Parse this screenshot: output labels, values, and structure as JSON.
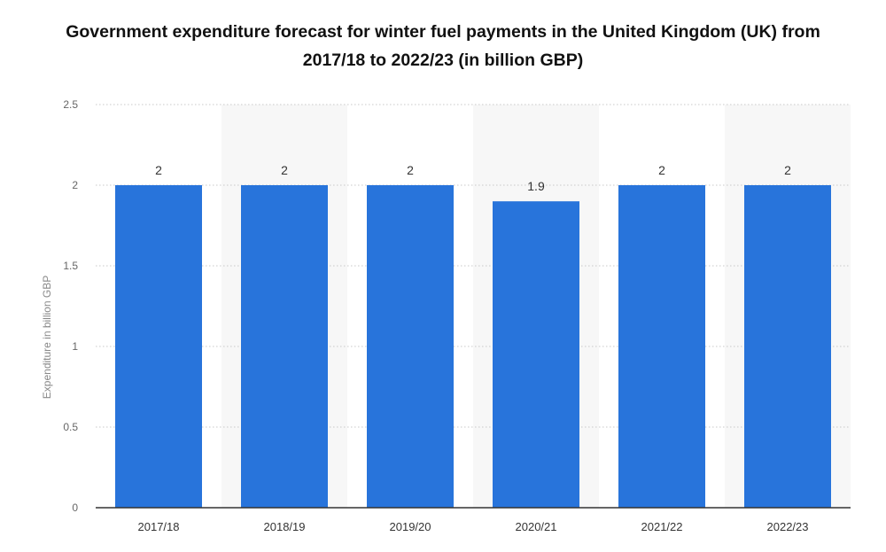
{
  "chart_data": {
    "type": "bar",
    "title": "Government expenditure forecast for winter fuel payments in the United Kingdom (UK) from 2017/18 to 2022/23 (in billion GBP)",
    "xlabel": "",
    "ylabel": "Expenditure in billion GBP",
    "categories": [
      "2017/18",
      "2018/19",
      "2019/20",
      "2020/21",
      "2021/22",
      "2022/23"
    ],
    "values": [
      2,
      2,
      2,
      1.9,
      2,
      2
    ],
    "data_labels": [
      "2",
      "2",
      "2",
      "1.9",
      "2",
      "2"
    ],
    "ylim": [
      0,
      2.5
    ],
    "yticks": [
      0,
      0.5,
      1,
      1.5,
      2,
      2.5
    ],
    "ytick_labels": [
      "0",
      "0.5",
      "1",
      "1.5",
      "2",
      "2.5"
    ],
    "grid": true,
    "bar_color": "#2874db",
    "band_color": "#f7f7f7"
  }
}
